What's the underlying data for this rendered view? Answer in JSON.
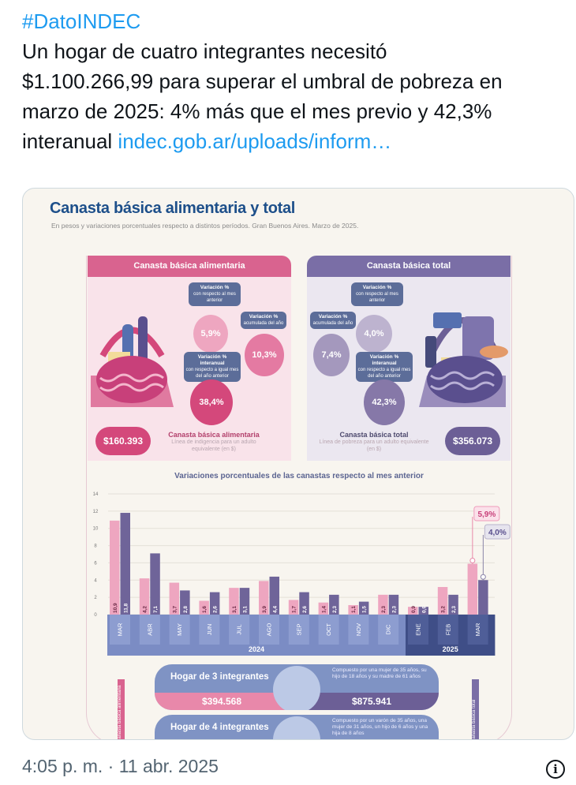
{
  "tweet": {
    "hashtag": "#DatoINDEC",
    "line1": "Un hogar de cuatro integrantes necesitó",
    "line2": "$1.100.266,99 para superar el umbral de pobreza en",
    "line3": "marzo de 2025: 4% más que el mes previo y 42,3%",
    "line4_text": "interanual ",
    "link": "indec.gob.ar/uploads/inform…",
    "timestamp": "4:05 p. m. · 11 abr. 2025",
    "info_icon": "i"
  },
  "infographic": {
    "title": "Canasta básica alimentaria y total",
    "subtitle": "En pesos y variaciones porcentuales respecto a distintos períodos. Gran Buenos Aires. Marzo de 2025.",
    "colors": {
      "pink": "#d9638f",
      "purple": "#7a6ea6",
      "navy": "#1d4f8a"
    },
    "cba": {
      "header": "Canasta básica alimentaria",
      "var_mes_label": "Variación %",
      "var_mes_sub": "con respecto al mes anterior",
      "var_mes": "5,9%",
      "var_acum_label": "Variación %",
      "var_acum_sub": "acumulada del año",
      "var_acum": "10,3%",
      "var_inter_label": "Variación % interanual",
      "var_inter_sub": "con respecto a igual mes del año anterior",
      "var_inter": "38,4%",
      "amount": "$160.393",
      "caption": "Canasta básica alimentaria",
      "caption_sub": "Línea de indigencia para un adulto equivalente (en $)"
    },
    "cbt": {
      "header": "Canasta básica total",
      "var_mes_label": "Variación %",
      "var_mes_sub": "con respecto al mes anterior",
      "var_mes": "4,0%",
      "var_acum_label": "Variación %",
      "var_acum_sub": "acumulada del año",
      "var_acum": "7,4%",
      "var_inter_label": "Variación % interanual",
      "var_inter_sub": "con respecto a igual mes del año anterior",
      "var_inter": "42,3%",
      "amount": "$356.073",
      "caption": "Canasta básica total",
      "caption_sub": "Línea de pobreza para un adulto equivalente (en $)"
    },
    "hogares": [
      {
        "name": "Hogar de 3 integrantes",
        "desc": "Compuesto por una mujer de 35 años, su hijo de 18 años y su madre de 61 años",
        "cba": "$394.568",
        "cbt": "$875.941"
      },
      {
        "name": "Hogar de 4 integrantes",
        "desc": "Compuesto por un varón de 35 años, una mujer de 31 años, un hijo de 6 años y una hija de 8 años"
      }
    ],
    "side_left": "Canasta básica alimentaria",
    "side_right": "Canasta básica total"
  },
  "chart_data": {
    "type": "bar",
    "title": "Variaciones porcentuales de las canastas respecto al mes anterior",
    "categories": [
      "MAR",
      "ABR",
      "MAY",
      "JUN",
      "JUL",
      "AGO",
      "SEP",
      "OCT",
      "NOV",
      "DIC",
      "ENE",
      "FEB",
      "MAR"
    ],
    "years": [
      {
        "label": "2024",
        "count": 10
      },
      {
        "label": "2025",
        "count": 3
      }
    ],
    "series": [
      {
        "name": "Canasta básica alimentaria",
        "color": "#eea6c0",
        "values": [
          10.9,
          4.2,
          3.7,
          1.6,
          3.1,
          3.9,
          1.7,
          1.4,
          1.1,
          2.3,
          0.9,
          3.2,
          5.9
        ],
        "labels": [
          "10,9",
          "4,2",
          "3,7",
          "1,6",
          "3,1",
          "3,9",
          "1,7",
          "1,4",
          "1,1",
          "2,3",
          "0,9",
          "3,2",
          "5,9%"
        ]
      },
      {
        "name": "Canasta básica total",
        "color": "#6f6499",
        "values": [
          11.8,
          7.1,
          2.8,
          2.6,
          3.1,
          4.4,
          2.6,
          2.3,
          1.5,
          2.3,
          0.9,
          2.3,
          4.0
        ],
        "labels": [
          "11,8",
          "7,1",
          "2,8",
          "2,6",
          "3,1",
          "4,4",
          "2,6",
          "2,3",
          "1,5",
          "2,3",
          "0,9",
          "2,3",
          "4,0%"
        ]
      }
    ],
    "yticks": [
      "0",
      "2",
      "4",
      "6",
      "8",
      "10",
      "12",
      "14"
    ],
    "ylim": [
      0,
      14
    ],
    "grid": true
  }
}
